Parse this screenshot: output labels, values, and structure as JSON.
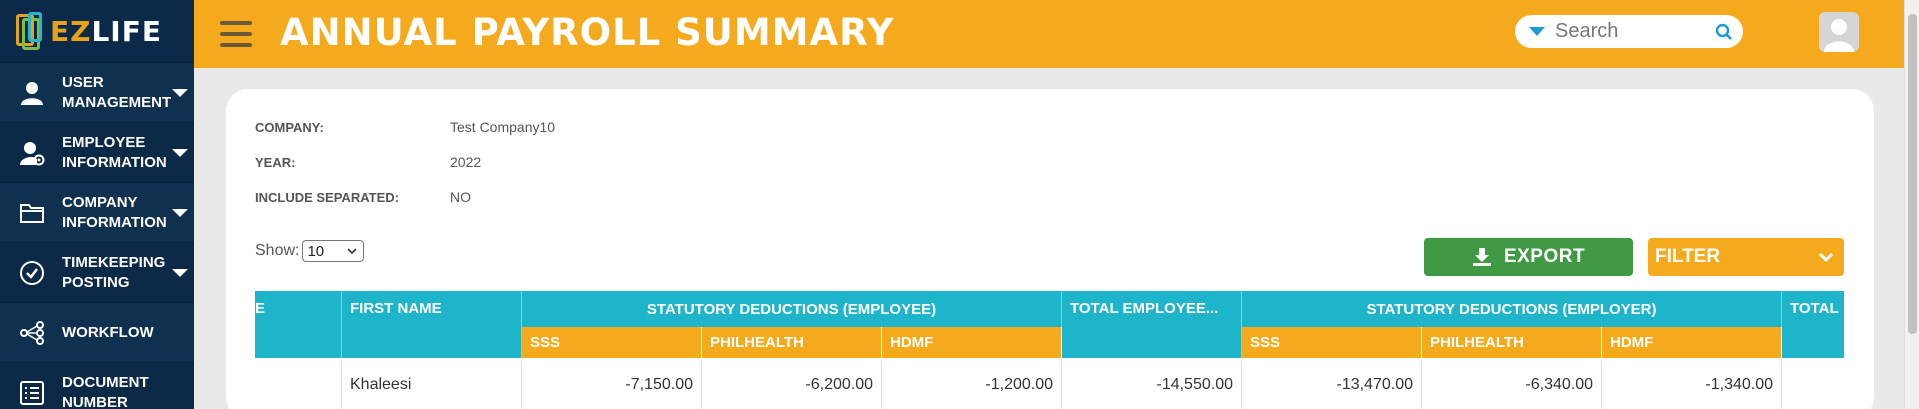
{
  "app": {
    "logo_text_ez": "EZ",
    "logo_text_life": "LIFE",
    "title": "ANNUAL PAYROLL SUMMARY"
  },
  "sidebar": {
    "items": [
      {
        "label": "USER MANAGEMENT",
        "icon": "user-icon",
        "expandable": true
      },
      {
        "label": "EMPLOYEE INFORMATION",
        "icon": "user-gear-icon",
        "expandable": true
      },
      {
        "label": "COMPANY INFORMATION",
        "icon": "folder-icon",
        "expandable": true
      },
      {
        "label": "TIMEKEEPING POSTING",
        "icon": "check-circle-icon",
        "expandable": true
      },
      {
        "label": "WORKFLOW",
        "icon": "workflow-icon",
        "expandable": false
      },
      {
        "label": "DOCUMENT NUMBER",
        "icon": "list-icon",
        "expandable": false
      }
    ]
  },
  "search": {
    "placeholder": "Search"
  },
  "info": {
    "company_label": "COMPANY:",
    "company_value": "Test Company10",
    "year_label": "YEAR:",
    "year_value": "2022",
    "separated_label": "INCLUDE SEPARATED:",
    "separated_value": "NO"
  },
  "controls": {
    "show_label": "Show:",
    "show_value": "10",
    "export_label": "EXPORT",
    "filter_label": "FILTER"
  },
  "table": {
    "first_col_fragment": "E",
    "headers": {
      "first_name": "FIRST NAME",
      "stat_employee": "STATUTORY DEDUCTIONS (EMPLOYEE)",
      "total_employee": "TOTAL EMPLOYEE...",
      "stat_employer": "STATUTORY DEDUCTIONS (EMPLOYER)",
      "total": "TOTAL"
    },
    "sub_headers": {
      "sss": "SSS",
      "philhealth": "PHILHEALTH",
      "hdmf": "HDMF"
    },
    "rows": [
      {
        "first_name": "Khaleesi",
        "emp_sss": "-7,150.00",
        "emp_philhealth": "-6,200.00",
        "emp_hdmf": "-1,200.00",
        "total_employee": "-14,550.00",
        "er_sss": "-13,470.00",
        "er_philhealth": "-6,340.00",
        "er_hdmf": "-1,340.00"
      }
    ]
  },
  "colors": {
    "sidebar": "#0b2a4a",
    "header": "#f5a91d",
    "table_header": "#1eb4c9",
    "export": "#3f9a43"
  }
}
